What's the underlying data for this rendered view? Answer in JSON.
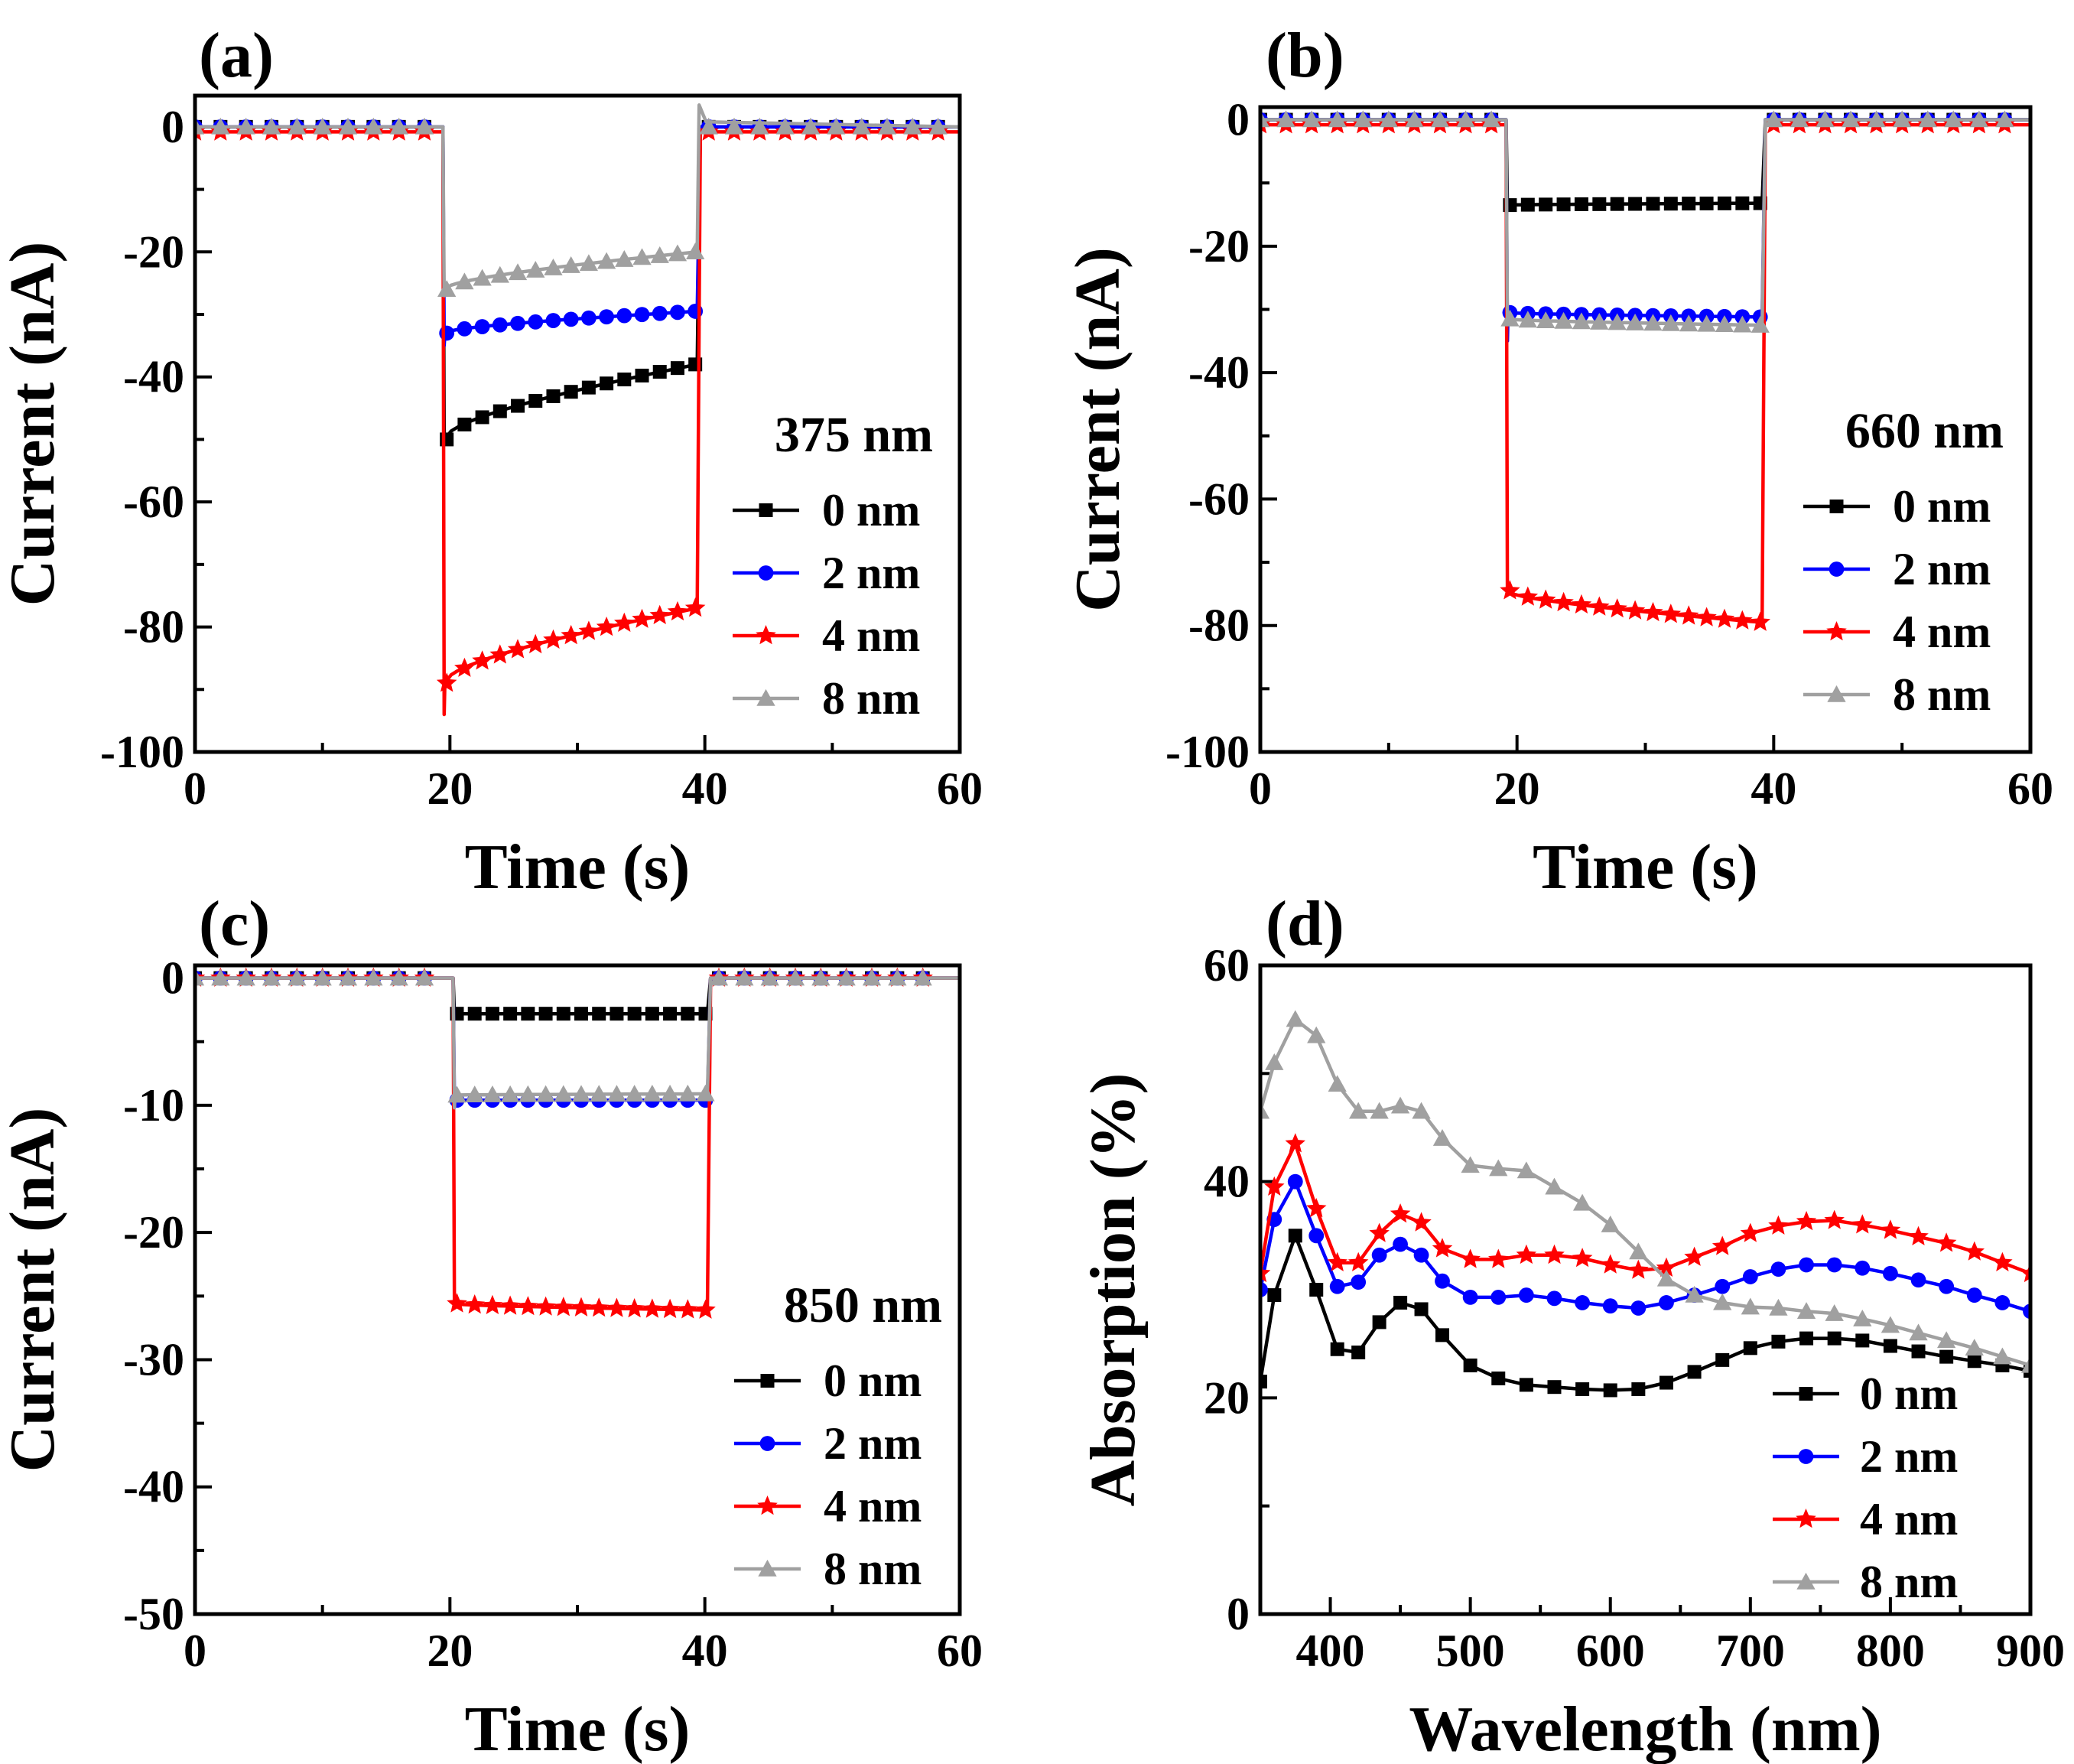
{
  "figure": {
    "colors": {
      "0 nm": "#000000",
      "2 nm": "#0000ff",
      "4 nm": "#ff0000",
      "8 nm": "#a0a0a0"
    }
  },
  "chart_data": [
    {
      "id": "a",
      "panel_label": "(a)",
      "type": "line",
      "xlabel": "Time (s)",
      "ylabel": "Current (nA)",
      "xlim": [
        0,
        60
      ],
      "ylim": [
        -100,
        5
      ],
      "xticks": [
        0,
        20,
        40,
        60
      ],
      "yticks": [
        0,
        -20,
        -40,
        -60,
        -80,
        -100
      ],
      "annotation": "375 nm",
      "legend_position": "bottom-right",
      "series": [
        {
          "name": "0 nm",
          "marker": "square",
          "on_start": 19.5,
          "off_time": 39.5,
          "dark": 0,
          "on_values": [
            -50,
            -38
          ],
          "spike": -50
        },
        {
          "name": "2 nm",
          "marker": "circle",
          "on_start": 19.5,
          "off_time": 39.5,
          "dark": 0,
          "on_values": [
            -33,
            -29.5
          ],
          "spike": -35
        },
        {
          "name": "4 nm",
          "marker": "star",
          "on_start": 19.5,
          "off_time": 39.5,
          "dark": -0.8,
          "on_values": [
            -89,
            -77
          ],
          "spike": -94
        },
        {
          "name": "8 nm",
          "marker": "triangle",
          "on_start": 19.5,
          "off_time": 39.5,
          "dark": 0,
          "on_values": [
            -26,
            -20
          ],
          "spike": -27,
          "overshoot": 3.5
        }
      ]
    },
    {
      "id": "b",
      "panel_label": "(b)",
      "type": "line",
      "xlabel": "Time (s)",
      "ylabel": "Current (nA)",
      "xlim": [
        0,
        60
      ],
      "ylim": [
        -100,
        2
      ],
      "xticks": [
        0,
        20,
        40,
        60
      ],
      "yticks": [
        0,
        -20,
        -40,
        -60,
        -80,
        -100
      ],
      "annotation": "660 nm",
      "legend_position": "right",
      "series": [
        {
          "name": "0 nm",
          "marker": "square",
          "on_start": 19.2,
          "off_time": 39.2,
          "dark": 0,
          "on_values": [
            -13.5,
            -13.2
          ],
          "spike": -13.5
        },
        {
          "name": "2 nm",
          "marker": "circle",
          "on_start": 19.2,
          "off_time": 39.2,
          "dark": 0,
          "on_values": [
            -30.5,
            -31.2
          ],
          "spike": -35
        },
        {
          "name": "4 nm",
          "marker": "star",
          "on_start": 19.2,
          "off_time": 39.2,
          "dark": -0.8,
          "on_values": [
            -74.5,
            -79.5
          ],
          "spike": -74.5
        },
        {
          "name": "8 nm",
          "marker": "triangle",
          "on_start": 19.2,
          "off_time": 39.2,
          "dark": 0,
          "on_values": [
            -31.5,
            -32.5
          ],
          "spike": -32
        }
      ]
    },
    {
      "id": "c",
      "panel_label": "(c)",
      "type": "line",
      "xlabel": "Time (s)",
      "ylabel": "Current (nA)",
      "xlim": [
        0,
        60
      ],
      "ylim": [
        -50,
        1
      ],
      "xticks": [
        0,
        20,
        40,
        60
      ],
      "yticks": [
        0,
        -10,
        -20,
        -30,
        -40,
        -50
      ],
      "annotation": "850 nm",
      "legend_position": "bottom-right",
      "series": [
        {
          "name": "0 nm",
          "marker": "square",
          "on_start": 20.3,
          "off_time": 40.3,
          "dark": 0,
          "on_values": [
            -2.8,
            -2.8
          ],
          "spike": -2.8
        },
        {
          "name": "2 nm",
          "marker": "circle",
          "on_start": 20.3,
          "off_time": 40.3,
          "dark": 0,
          "on_values": [
            -9.6,
            -9.6
          ],
          "spike": -9.6
        },
        {
          "name": "4 nm",
          "marker": "star",
          "on_start": 20.3,
          "off_time": 40.3,
          "dark": 0,
          "on_values": [
            -25.6,
            -26.1
          ],
          "spike": -25.6
        },
        {
          "name": "8 nm",
          "marker": "triangle",
          "on_start": 20.3,
          "off_time": 40.3,
          "dark": 0,
          "on_values": [
            -9.2,
            -9.1
          ],
          "spike": -10.2
        }
      ]
    },
    {
      "id": "d",
      "panel_label": "(d)",
      "type": "line",
      "xlabel": "Wavelength (nm)",
      "ylabel": "Absorption (%)",
      "xlim": [
        350,
        900
      ],
      "ylim": [
        0,
        60
      ],
      "xticks": [
        400,
        500,
        600,
        700,
        800,
        900
      ],
      "yticks": [
        0,
        20,
        40,
        60
      ],
      "legend_position": "bottom-right",
      "x": [
        350,
        360,
        375,
        390,
        405,
        420,
        435,
        450,
        465,
        480,
        500,
        520,
        540,
        560,
        580,
        600,
        620,
        640,
        660,
        680,
        700,
        720,
        740,
        760,
        780,
        800,
        820,
        840,
        860,
        880,
        900
      ],
      "series": [
        {
          "name": "0 nm",
          "marker": "square",
          "values": [
            21.5,
            29.5,
            35.0,
            30.0,
            24.5,
            24.2,
            27.0,
            28.8,
            28.2,
            25.8,
            23.0,
            21.8,
            21.2,
            21.0,
            20.8,
            20.7,
            20.8,
            21.4,
            22.4,
            23.5,
            24.6,
            25.2,
            25.5,
            25.5,
            25.3,
            24.8,
            24.3,
            23.8,
            23.4,
            23.0,
            22.5
          ]
        },
        {
          "name": "2 nm",
          "marker": "circle",
          "values": [
            30.0,
            36.5,
            40.0,
            35.0,
            30.3,
            30.7,
            33.2,
            34.2,
            33.2,
            30.8,
            29.3,
            29.3,
            29.5,
            29.2,
            28.8,
            28.5,
            28.3,
            28.8,
            29.5,
            30.3,
            31.2,
            31.9,
            32.3,
            32.3,
            32.0,
            31.5,
            30.9,
            30.3,
            29.5,
            28.8,
            28.0
          ]
        },
        {
          "name": "4 nm",
          "marker": "star",
          "values": [
            31.5,
            39.5,
            43.5,
            37.5,
            32.5,
            32.5,
            35.2,
            37.0,
            36.2,
            33.8,
            32.8,
            32.8,
            33.2,
            33.2,
            32.9,
            32.3,
            31.8,
            32.0,
            33.0,
            34.0,
            35.2,
            35.9,
            36.3,
            36.4,
            36.0,
            35.5,
            34.9,
            34.3,
            33.5,
            32.5,
            31.5
          ]
        },
        {
          "name": "8 nm",
          "marker": "triangle",
          "values": [
            46.5,
            51.0,
            55.0,
            53.5,
            49.0,
            46.5,
            46.5,
            47.0,
            46.5,
            44.0,
            41.5,
            41.2,
            41.0,
            39.5,
            38.0,
            36.0,
            33.5,
            31.0,
            29.5,
            28.8,
            28.4,
            28.3,
            28.0,
            27.8,
            27.3,
            26.7,
            26.0,
            25.3,
            24.6,
            23.8,
            23.0
          ]
        }
      ]
    }
  ]
}
